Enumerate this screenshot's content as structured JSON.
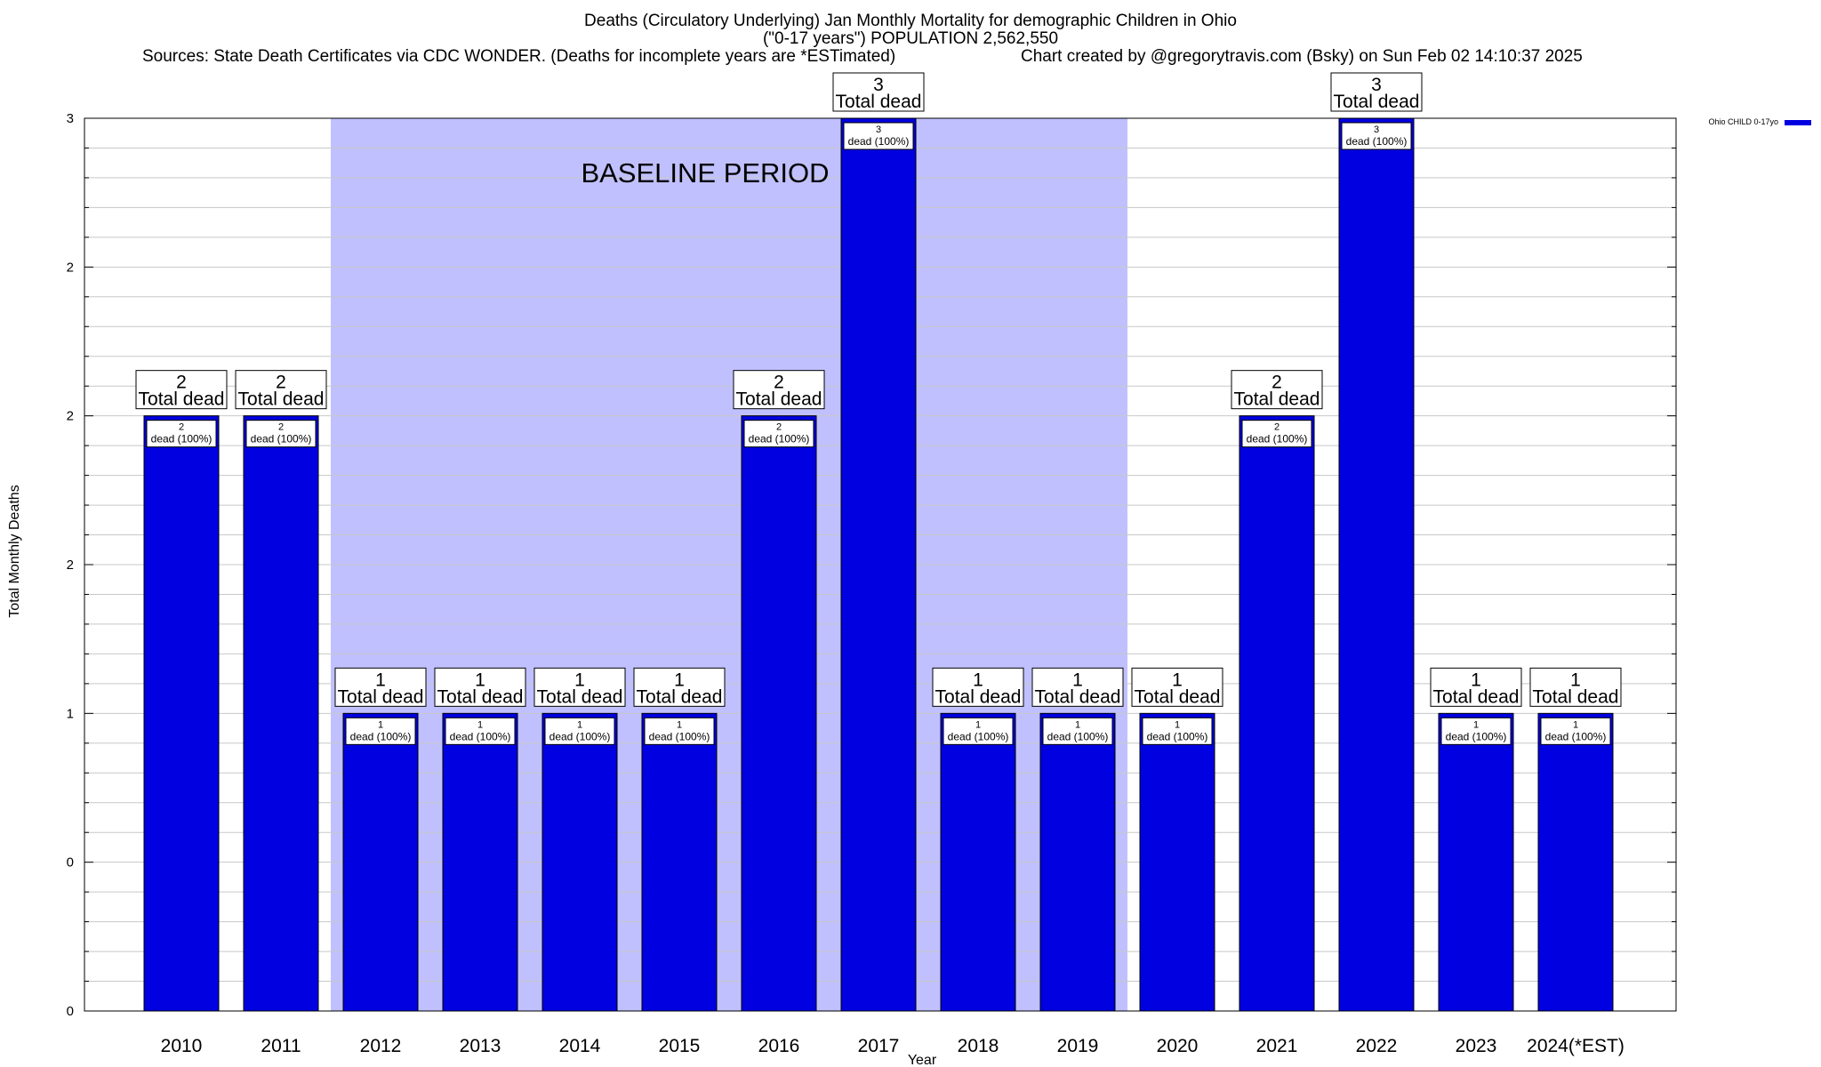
{
  "header": {
    "title_line1": "Deaths (Circulatory Underlying) Jan Monthly Mortality for demographic Children in Ohio",
    "title_line2": "(\"0-17 years\") POPULATION 2,562,550",
    "sources": "Sources: State Death Certificates via CDC WONDER. (Deaths for incomplete years are *ESTimated)",
    "credit": "Chart created by @gregorytravis.com (Bsky) on Sun Feb 02 14:10:37 2025"
  },
  "colors": {
    "bar": "#0000e0",
    "baseline_shade": "#c0c0ff",
    "grid": "#c8c8c8"
  },
  "chart_data": {
    "type": "bar",
    "title": "Deaths (Circulatory Underlying) Jan Monthly Mortality for demographic Children in Ohio",
    "xlabel": "Year",
    "ylabel": "Total Monthly Deaths",
    "ylim": [
      0,
      3
    ],
    "yticks": [
      0,
      0.5,
      1,
      1.5,
      2,
      2.5,
      3
    ],
    "ytick_labels": [
      "0",
      "0",
      "1",
      "2",
      "2",
      "2",
      "3"
    ],
    "grid": true,
    "legend": {
      "placement": "top-right",
      "label": "Ohio CHILD 0-17yo"
    },
    "baseline": {
      "label": "BASELINE PERIOD",
      "from": "2012",
      "to": "2019"
    },
    "categories": [
      "2010",
      "2011",
      "2012",
      "2013",
      "2014",
      "2015",
      "2016",
      "2017",
      "2018",
      "2019",
      "2020",
      "2021",
      "2022",
      "2023",
      "2024(*EST)"
    ],
    "series": [
      {
        "name": "Ohio CHILD 0-17yo",
        "values": [
          2,
          2,
          1,
          1,
          1,
          1,
          2,
          3,
          1,
          1,
          1,
          2,
          3,
          1,
          1
        ]
      }
    ],
    "total_label": "Total dead",
    "inner_labels": [
      "2\ndead (100%)",
      "2\ndead (100%)",
      "1\ndead (100%)",
      "1\ndead (100%)",
      "1\ndead (100%)",
      "1\ndead (100%)",
      "2\ndead (100%)",
      "3\ndead (100%)",
      "1\ndead (100%)",
      "1\ndead (100%)",
      "1\ndead (100%)",
      "2\ndead (100%)",
      "3\ndead (100%)",
      "1\ndead (100%)",
      "1\ndead (100%)"
    ]
  }
}
